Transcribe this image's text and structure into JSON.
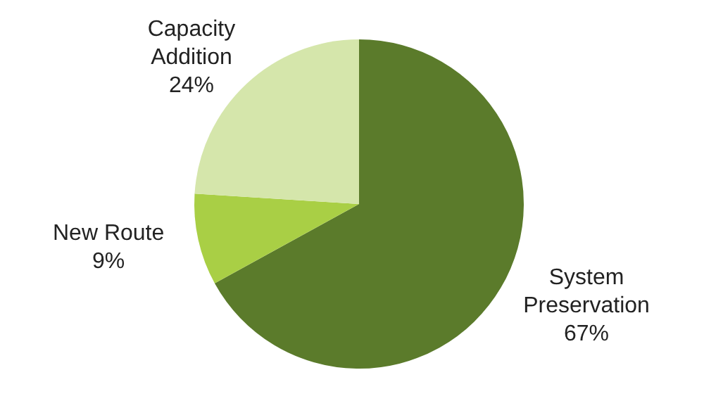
{
  "chart_data": {
    "type": "pie",
    "categories": [
      "System Preservation",
      "New Route",
      "Capacity Addition"
    ],
    "values": [
      67,
      9,
      24
    ],
    "colors": [
      "#5b7b2b",
      "#a9cf45",
      "#d5e6ab"
    ],
    "value_labels": [
      "67%",
      "9%",
      "24%"
    ],
    "legend": false
  }
}
